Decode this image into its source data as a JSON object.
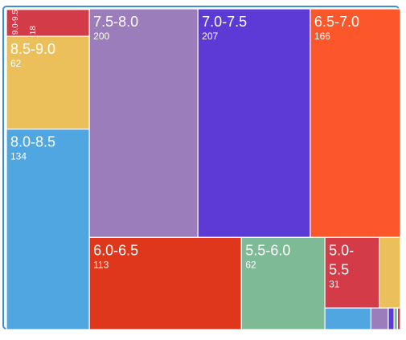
{
  "chart_data": {
    "type": "treemap",
    "title": "",
    "items": [
      {
        "label": "7.0-7.5",
        "value": 207,
        "color": "#5B3AD6"
      },
      {
        "label": "7.5-8.0",
        "value": 200,
        "color": "#9A7DBA"
      },
      {
        "label": "6.5-7.0",
        "value": 166,
        "color": "#FB572B"
      },
      {
        "label": "8.0-8.5",
        "value": 134,
        "color": "#4FA6E0"
      },
      {
        "label": "6.0-6.5",
        "value": 113,
        "color": "#DE371C"
      },
      {
        "label": "8.5-9.0",
        "value": 62,
        "color": "#EBC05A"
      },
      {
        "label": "5.5-6.0",
        "value": 62,
        "color": "#7FBA97"
      },
      {
        "label": "5.0-5.5",
        "value": 31,
        "color": "#D23B47"
      },
      {
        "label": "9.0-9.5",
        "value": 18,
        "color": "#D23B47"
      },
      {
        "label": "",
        "value": 12,
        "color": "#EBC05A"
      },
      {
        "label": "",
        "value": 8,
        "color": "#4FA6E0"
      },
      {
        "label": "",
        "value": 3,
        "color": "#9A7DBA"
      },
      {
        "label": "",
        "value": 1,
        "color": "#5B3AD6"
      },
      {
        "label": "",
        "value": 0.6,
        "color": "#7FBA97"
      },
      {
        "label": "",
        "value": 0.5,
        "color": "#D23B47"
      },
      {
        "label": "",
        "value": 0.4,
        "color": "#DE371C"
      }
    ]
  }
}
